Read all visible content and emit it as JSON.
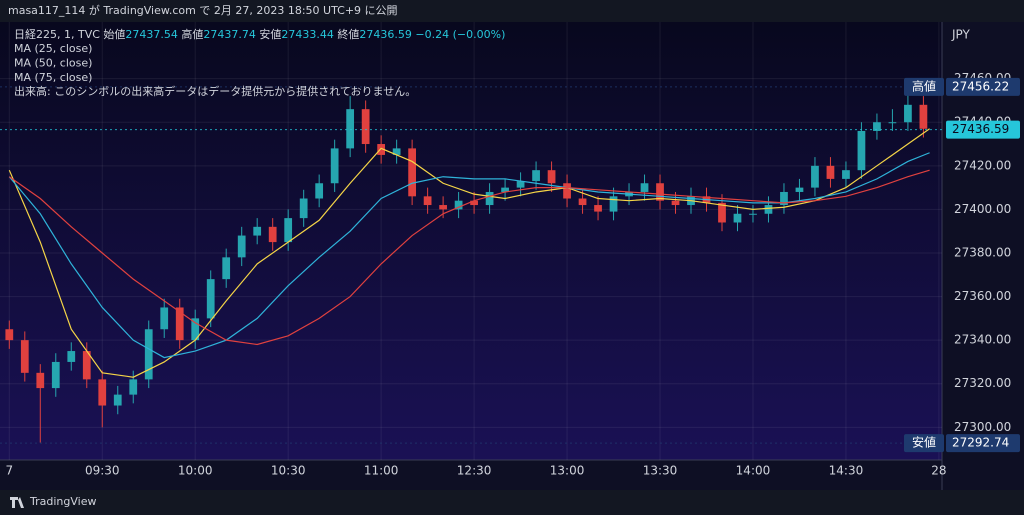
{
  "header": {
    "publisher": "masa117_114 が TradingView.com で 2月 27, 2023 18:50 UTC+9 に公開",
    "brand": "TradingView"
  },
  "chart_data": {
    "type": "candlestick",
    "symbol": "日経225, 1, TVC",
    "legend_ohlc": [
      {
        "label": "始値",
        "value": 27437.54
      },
      {
        "label": "高値",
        "value": 27437.74
      },
      {
        "label": "安値",
        "value": 27433.44
      },
      {
        "label": "終値",
        "value": 27436.59
      }
    ],
    "change": "−0.24 (−0.00%)",
    "notice": "出来高: このシンボルの出来高データはデータ提供元から提供されておりません。",
    "currency": "JPY",
    "up_color": "#26a6b0",
    "down_color": "#e0413f",
    "x": [
      0,
      5,
      10,
      15,
      20,
      25,
      30,
      35,
      40,
      45,
      50,
      55,
      60,
      65,
      70,
      75,
      80,
      85,
      90,
      95,
      100,
      105,
      110,
      115,
      120,
      125,
      130,
      135,
      140,
      145,
      150,
      155,
      160,
      165,
      170,
      175,
      180,
      185,
      190,
      195,
      200,
      205,
      210,
      215,
      220,
      225,
      230,
      235,
      240,
      245,
      250,
      255,
      260,
      265,
      270,
      275,
      280,
      285,
      290,
      295
    ],
    "open": [
      27345,
      27340,
      27325,
      27318,
      27330,
      27335,
      27322,
      27310,
      27315,
      27322,
      27345,
      27355,
      27340,
      27350,
      27368,
      27378,
      27388,
      27392,
      27385,
      27396,
      27405,
      27412,
      27428,
      27446,
      27430,
      27425,
      27428,
      27406,
      27402,
      27400,
      27404,
      27402,
      27408,
      27410,
      27413,
      27418,
      27412,
      27405,
      27402,
      27399,
      27406,
      27408,
      27412,
      27404,
      27402,
      27406,
      27403,
      27394,
      27398,
      27398,
      27402,
      27408,
      27410,
      27420,
      27414,
      27418,
      27436,
      27440,
      27440,
      27448
    ],
    "high": [
      27349,
      27344,
      27329,
      27334,
      27339,
      27339,
      27326,
      27319,
      27326,
      27349,
      27359,
      27359,
      27354,
      27372,
      27382,
      27392,
      27396,
      27396,
      27400,
      27409,
      27416,
      27432,
      27452,
      27450,
      27434,
      27432,
      27432,
      27410,
      27406,
      27408,
      27408,
      27412,
      27414,
      27417,
      27422,
      27422,
      27416,
      27409,
      27406,
      27410,
      27412,
      27416,
      27416,
      27408,
      27410,
      27410,
      27407,
      27402,
      27402,
      27406,
      27412,
      27414,
      27424,
      27424,
      27422,
      27440,
      27444,
      27446,
      27456,
      27452
    ],
    "low": [
      27336,
      27321,
      27293,
      27314,
      27326,
      27318,
      27300,
      27306,
      27311,
      27318,
      27341,
      27336,
      27336,
      27346,
      27364,
      27374,
      27384,
      27381,
      27381,
      27392,
      27401,
      27408,
      27424,
      27426,
      27421,
      27421,
      27402,
      27398,
      27396,
      27396,
      27398,
      27398,
      27404,
      27406,
      27409,
      27408,
      27401,
      27398,
      27395,
      27395,
      27402,
      27404,
      27400,
      27398,
      27398,
      27399,
      27390,
      27390,
      27394,
      27394,
      27398,
      27404,
      27406,
      27410,
      27410,
      27414,
      27432,
      27436,
      27436,
      27433
    ],
    "close": [
      27340,
      27325,
      27318,
      27330,
      27335,
      27322,
      27310,
      27315,
      27322,
      27345,
      27355,
      27340,
      27350,
      27368,
      27378,
      27388,
      27392,
      27385,
      27396,
      27405,
      27412,
      27428,
      27446,
      27430,
      27425,
      27428,
      27406,
      27402,
      27400,
      27404,
      27402,
      27408,
      27410,
      27413,
      27418,
      27412,
      27405,
      27402,
      27399,
      27406,
      27408,
      27412,
      27404,
      27402,
      27406,
      27403,
      27394,
      27398,
      27398,
      27402,
      27408,
      27410,
      27420,
      27414,
      27418,
      27436,
      27440,
      27440,
      27448,
      27437
    ],
    "ma_series": [
      {
        "name": "MA (25, close)",
        "color": "#f5d547",
        "x": [
          0,
          10,
          20,
          30,
          40,
          50,
          60,
          70,
          80,
          90,
          100,
          110,
          120,
          130,
          140,
          150,
          160,
          170,
          180,
          190,
          200,
          210,
          220,
          230,
          240,
          250,
          260,
          270,
          280,
          290,
          297
        ],
        "values": [
          27418,
          27385,
          27345,
          27325,
          27323,
          27330,
          27340,
          27358,
          27375,
          27385,
          27395,
          27412,
          27428,
          27422,
          27412,
          27407,
          27405,
          27408,
          27410,
          27405,
          27404,
          27405,
          27404,
          27402,
          27400,
          27401,
          27404,
          27410,
          27420,
          27430,
          27437
        ]
      },
      {
        "name": "MA (50, close)",
        "color": "#2fb3d9",
        "x": [
          0,
          10,
          20,
          30,
          40,
          50,
          60,
          70,
          80,
          90,
          100,
          110,
          120,
          130,
          140,
          150,
          160,
          170,
          180,
          190,
          200,
          210,
          220,
          230,
          240,
          250,
          260,
          270,
          280,
          290,
          297
        ],
        "values": [
          27415,
          27398,
          27375,
          27355,
          27340,
          27332,
          27335,
          27340,
          27350,
          27365,
          27378,
          27390,
          27405,
          27412,
          27415,
          27414,
          27414,
          27412,
          27410,
          27408,
          27407,
          27406,
          27405,
          27404,
          27403,
          27403,
          27405,
          27408,
          27414,
          27422,
          27426
        ]
      },
      {
        "name": "MA (75, close)",
        "color": "#e0413f",
        "x": [
          0,
          10,
          20,
          30,
          40,
          50,
          60,
          70,
          80,
          90,
          100,
          110,
          120,
          130,
          140,
          150,
          160,
          170,
          180,
          190,
          200,
          210,
          220,
          230,
          240,
          250,
          260,
          270,
          280,
          290,
          297
        ],
        "values": [
          27415,
          27405,
          27392,
          27380,
          27368,
          27358,
          27348,
          27340,
          27338,
          27342,
          27350,
          27360,
          27375,
          27388,
          27398,
          27404,
          27408,
          27410,
          27410,
          27409,
          27408,
          27407,
          27406,
          27405,
          27404,
          27403,
          27404,
          27406,
          27410,
          27415,
          27418
        ]
      }
    ],
    "price_markers": [
      {
        "label": "高値",
        "value": 27456.22,
        "color": "#1e3a6e"
      },
      {
        "label": "安値",
        "value": 27292.74,
        "color": "#1e3a6e"
      },
      {
        "value": 27436.59,
        "color": "#26c6da"
      }
    ],
    "xlim": [
      -3,
      301
    ],
    "ylim": [
      27285,
      27486
    ],
    "xticks": [
      {
        "value": 0,
        "label": "7"
      },
      {
        "value": 30,
        "label": "09:30"
      },
      {
        "value": 60,
        "label": "10:00"
      },
      {
        "value": 90,
        "label": "10:30"
      },
      {
        "value": 120,
        "label": "11:00"
      },
      {
        "value": 150,
        "label": "12:30"
      },
      {
        "value": 180,
        "label": "13:00"
      },
      {
        "value": 210,
        "label": "13:30"
      },
      {
        "value": 240,
        "label": "14:00"
      },
      {
        "value": 270,
        "label": "14:30"
      },
      {
        "value": 300,
        "label": "28"
      }
    ],
    "yticks": [
      {
        "value": 27300,
        "label": "27300.00"
      },
      {
        "value": 27320,
        "label": "27320.00"
      },
      {
        "value": 27340,
        "label": "27340.00"
      },
      {
        "value": 27360,
        "label": "27360.00"
      },
      {
        "value": 27380,
        "label": "27380.00"
      },
      {
        "value": 27400,
        "label": "27400.00"
      },
      {
        "value": 27420,
        "label": "27420.00"
      },
      {
        "value": 27440,
        "label": "27440.00"
      },
      {
        "value": 27460,
        "label": "27460.00"
      }
    ],
    "grid": true
  }
}
